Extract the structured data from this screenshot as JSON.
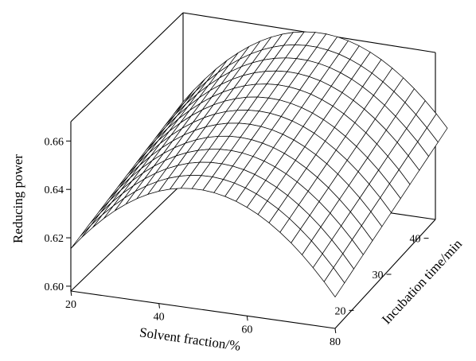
{
  "chart_data": {
    "type": "surface",
    "title": "",
    "xlabel": "Solvent fraction/%",
    "ylabel": "Incubation time/min",
    "zlabel": "Reducing power",
    "x_ticks": [
      "20",
      "40",
      "60",
      "80"
    ],
    "y_ticks": [
      "20",
      "30",
      "40"
    ],
    "z_ticks": [
      "0.60",
      "0.62",
      "0.64",
      "0.66"
    ],
    "xlim": [
      20,
      80
    ],
    "ylim": [
      15,
      45
    ],
    "zlim": [
      0.598,
      0.668
    ],
    "grid": false,
    "surface_points": [
      {
        "solvent_fraction": 20,
        "incubation_time": 15,
        "reducing_power": 0.617
      },
      {
        "solvent_fraction": 50,
        "incubation_time": 15,
        "reducing_power": 0.647
      },
      {
        "solvent_fraction": 80,
        "incubation_time": 15,
        "reducing_power": 0.597
      },
      {
        "solvent_fraction": 20,
        "incubation_time": 45,
        "reducing_power": 0.641
      },
      {
        "solvent_fraction": 50,
        "incubation_time": 45,
        "reducing_power": 0.668
      },
      {
        "solvent_fraction": 80,
        "incubation_time": 45,
        "reducing_power": 0.622
      }
    ]
  }
}
